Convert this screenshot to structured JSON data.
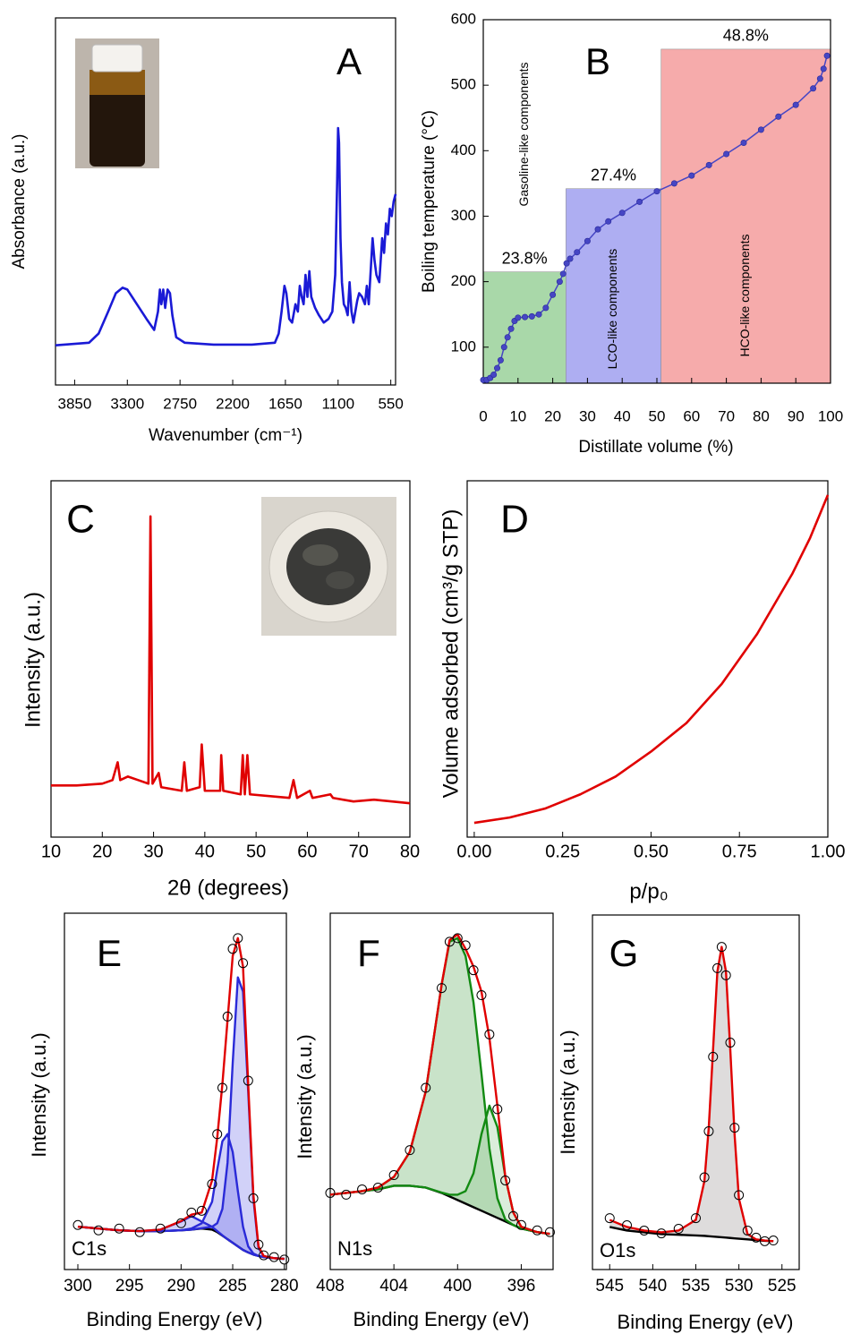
{
  "chart_data": [
    {
      "type": "line",
      "label": "A",
      "x_label": "Wavenumber (cm⁻¹)",
      "y_label": "Absorbance (a.u.)",
      "xlim": [
        4050,
        500
      ],
      "ylim": [
        0,
        100
      ],
      "xticks": [
        3850,
        3300,
        2750,
        2200,
        1650,
        1100,
        550
      ],
      "x": [
        4050,
        3700,
        3600,
        3500,
        3420,
        3350,
        3300,
        3200,
        3100,
        3020,
        2980,
        2960,
        2945,
        2925,
        2905,
        2880,
        2855,
        2830,
        2790,
        2700,
        2400,
        2000,
        1760,
        1720,
        1690,
        1660,
        1640,
        1610,
        1580,
        1545,
        1520,
        1500,
        1480,
        1460,
        1440,
        1420,
        1400,
        1380,
        1340,
        1300,
        1250,
        1200,
        1160,
        1130,
        1110,
        1100,
        1090,
        1075,
        1060,
        1040,
        1020,
        1000,
        980,
        960,
        940,
        920,
        900,
        880,
        850,
        820,
        800,
        780,
        760,
        740,
        720,
        700,
        670,
        640,
        620,
        600,
        580,
        560,
        540,
        520,
        500
      ],
      "series": [
        {
          "color": "#1a1ad6",
          "values": [
            10.8,
            11.5,
            14,
            20,
            25,
            26.5,
            26,
            22,
            18,
            15,
            20,
            26,
            22,
            26,
            21,
            26,
            25,
            19,
            13,
            11.5,
            11,
            11,
            11.5,
            14,
            20,
            27,
            25,
            18,
            17,
            22,
            20,
            27,
            24,
            22,
            30,
            24,
            31,
            24,
            21,
            19,
            17,
            18,
            20,
            30,
            55,
            70,
            66,
            40,
            28,
            22,
            21,
            19,
            28,
            20,
            17,
            20,
            23,
            25,
            24,
            22,
            27,
            22,
            31,
            40,
            34,
            30,
            28,
            40,
            36,
            44,
            41,
            48,
            46,
            50,
            52
          ]
        }
      ]
    },
    {
      "type": "scatter",
      "label": "B",
      "x_label": "Distillate volume (%)",
      "y_label": "Boiling temperature (°C)",
      "xlim": [
        0,
        100
      ],
      "ylim": [
        45,
        600
      ],
      "xticks": [
        0,
        10,
        20,
        30,
        40,
        50,
        60,
        70,
        80,
        90,
        100
      ],
      "yticks": [
        100,
        200,
        300,
        400,
        500,
        600
      ],
      "regions": {
        "names": [
          "Gasoline-like components",
          "LCO-like components",
          "HCO-like components"
        ],
        "values": [
          23.8,
          27.4,
          48.8
        ],
        "value_labels": [
          "23.8%",
          "27.4%",
          "48.8%"
        ],
        "tops": [
          215,
          342,
          555
        ],
        "colors": [
          "#a9d8a9",
          "#aeaef2",
          "#f6abab"
        ]
      },
      "x": [
        0,
        1,
        2,
        3,
        4,
        5,
        6,
        7,
        8,
        9,
        10,
        12,
        14,
        16,
        18,
        20,
        22,
        23,
        24,
        25,
        27,
        30,
        33,
        36,
        40,
        45,
        50,
        55,
        60,
        65,
        70,
        75,
        80,
        85,
        90,
        95,
        97,
        98,
        99
      ],
      "series": [
        {
          "color": "#4646c4",
          "values": [
            50,
            50,
            53,
            58,
            68,
            80,
            100,
            115,
            128,
            140,
            145,
            146,
            147,
            150,
            160,
            180,
            200,
            212,
            228,
            235,
            245,
            262,
            280,
            292,
            305,
            322,
            338,
            350,
            362,
            378,
            395,
            412,
            432,
            452,
            470,
            495,
            510,
            525,
            545
          ]
        }
      ]
    },
    {
      "type": "line",
      "label": "C",
      "x_label": "2θ (degrees)",
      "y_label": "Intensity (a.u.)",
      "xlim": [
        10,
        80
      ],
      "ylim": [
        0,
        100
      ],
      "xticks": [
        10,
        20,
        30,
        40,
        50,
        60,
        70,
        80
      ],
      "x": [
        10,
        15,
        20,
        22,
        23,
        23.5,
        25,
        27,
        29,
        29.4,
        29.8,
        31,
        31.5,
        35.5,
        36,
        36.5,
        39,
        39.4,
        40,
        43,
        43.2,
        43.6,
        47,
        47.4,
        47.8,
        48.3,
        48.8,
        56.5,
        57.3,
        58,
        60.5,
        61,
        64.5,
        65,
        69,
        73,
        80
      ],
      "series": [
        {
          "color": "#e00000",
          "values": [
            14.5,
            14.5,
            15,
            16,
            21,
            16,
            17,
            16,
            15,
            90,
            15,
            18,
            14,
            13,
            21,
            13,
            14,
            26,
            13,
            13,
            23,
            13,
            12,
            23,
            12,
            23,
            12,
            11,
            16,
            11,
            13,
            11,
            12,
            11,
            10,
            10.5,
            9.5
          ]
        }
      ]
    },
    {
      "type": "line",
      "label": "D",
      "x_label": "p/p₀",
      "y_label": "Volume adsorbed (cm³/g STP)",
      "xlim": [
        -0.02,
        1.0
      ],
      "ylim": [
        0,
        100
      ],
      "xticks": [
        {
          "value": 0,
          "label": "0.00"
        },
        {
          "value": 0.25,
          "label": "0.25"
        },
        {
          "value": 0.5,
          "label": "0.50"
        },
        {
          "value": 0.75,
          "label": "0.75"
        },
        {
          "value": 1,
          "label": "1.00"
        }
      ],
      "x": [
        0,
        0.1,
        0.2,
        0.3,
        0.4,
        0.5,
        0.6,
        0.7,
        0.8,
        0.9,
        0.95,
        1.0
      ],
      "series": [
        {
          "color": "#e00000",
          "values": [
            4,
            5.5,
            8,
            12,
            17,
            24,
            32,
            43,
            57,
            74,
            84,
            96
          ]
        }
      ]
    },
    {
      "type": "spectrum",
      "label": "E",
      "annotation": "C1s",
      "x_label": "Binding Energy (eV)",
      "y_label": "Intensity (a.u.)",
      "xlim": [
        301.3,
        279.8
      ],
      "ylim": [
        0,
        100
      ],
      "xticks": [
        300,
        295,
        290,
        285,
        280
      ],
      "x": [
        300,
        298,
        296,
        294,
        292,
        290,
        289,
        288,
        287,
        286.5,
        286,
        285.5,
        285,
        284.5,
        284,
        283.5,
        283,
        282.5,
        282,
        281,
        280
      ],
      "series": [
        {
          "color": "#000000",
          "style": "line",
          "values": [
            12,
            11.5,
            11,
            10.8,
            10.8,
            11,
            11.2,
            11.5,
            11.2,
            10.5,
            9.5,
            8.5,
            7.5,
            6.5,
            5.5,
            4.8,
            4.2,
            3.8,
            3.5,
            3.2,
            3
          ]
        },
        {
          "color": "#2a2ad8",
          "style": "line",
          "fill": "#5a5ae6",
          "values": [
            12,
            11.5,
            11,
            10.8,
            11.2,
            13.5,
            15,
            13.5,
            12,
            10.8,
            9.6,
            8.5,
            7.5,
            6.5,
            5.5,
            4.8,
            4.2,
            3.8,
            3.5,
            3.2,
            3
          ]
        },
        {
          "color": "#2a2ad8",
          "style": "line",
          "fill": "#5a5ae6",
          "values": [
            12,
            11.5,
            11,
            10.8,
            10.8,
            11,
            11.5,
            13,
            19,
            28,
            36,
            38,
            33,
            22,
            12,
            6.5,
            4.5,
            3.8,
            3.5,
            3.2,
            3
          ]
        },
        {
          "color": "#2a2ad8",
          "style": "line",
          "fill": "#5a5ae6",
          "values": [
            12,
            11.5,
            11,
            10.8,
            10.8,
            11,
            11.2,
            11.6,
            12,
            13,
            17,
            30,
            58,
            82,
            78,
            50,
            20,
            6,
            3.8,
            3.2,
            3
          ]
        },
        {
          "color": "#e00000",
          "style": "line",
          "values": [
            12,
            11.5,
            11,
            10.8,
            11.2,
            13.6,
            15.4,
            16,
            25,
            37,
            52,
            70,
            88,
            93,
            85,
            52,
            21,
            6.5,
            3.8,
            3.2,
            3
          ]
        },
        {
          "color": "#000000",
          "style": "points",
          "values": [
            12.5,
            11,
            11.5,
            10.5,
            11.5,
            13,
            16,
            16.5,
            24,
            38,
            51,
            71,
            90,
            93,
            86,
            53,
            20,
            7,
            4,
            3.5,
            2.8
          ]
        }
      ]
    },
    {
      "type": "spectrum",
      "label": "F",
      "annotation": "N1s",
      "x_label": "Binding Energy (eV)",
      "y_label": "Intensity (a.u.)",
      "xlim": [
        408,
        394
      ],
      "ylim": [
        0,
        100
      ],
      "xticks": [
        408,
        404,
        400,
        396
      ],
      "x": [
        408,
        407,
        406,
        405,
        404,
        403,
        402,
        401,
        400.5,
        400,
        399.5,
        399,
        398.5,
        398,
        397.5,
        397,
        396.5,
        396,
        395,
        394.2
      ],
      "series": [
        {
          "color": "#000000",
          "style": "line",
          "values": [
            21,
            21.5,
            22,
            22.5,
            23.5,
            23.5,
            23,
            21.5,
            20.5,
            19.5,
            18.5,
            17.5,
            16.5,
            15.5,
            14.5,
            13.5,
            12.5,
            11.5,
            10.5,
            10
          ]
        },
        {
          "color": "#128a12",
          "style": "line",
          "fill": "#3c9a3c",
          "values": [
            21,
            21.5,
            22,
            23,
            26,
            33,
            50,
            80,
            92,
            93,
            88,
            75,
            55,
            34,
            20,
            14,
            12.5,
            11.5,
            10.5,
            10
          ]
        },
        {
          "color": "#128a12",
          "style": "line",
          "fill": "#7cc07c",
          "values": [
            21,
            21.5,
            22,
            22.5,
            23.5,
            23.5,
            23,
            21.6,
            21,
            21,
            22,
            27,
            38,
            46,
            40,
            26,
            16,
            12,
            10.5,
            10
          ]
        },
        {
          "color": "#e00000",
          "style": "line",
          "values": [
            21,
            21.5,
            22,
            23,
            26,
            33,
            50,
            80,
            92.5,
            94,
            90,
            85,
            78,
            65,
            46,
            26,
            16,
            12,
            10.5,
            10
          ]
        },
        {
          "color": "#000000",
          "style": "points",
          "values": [
            21.5,
            21,
            22.5,
            23,
            26.5,
            33.5,
            51,
            79,
            92,
            93,
            91,
            84,
            77,
            66,
            45,
            25,
            15,
            12.5,
            11,
            10.5
          ]
        }
      ]
    },
    {
      "type": "spectrum",
      "label": "G",
      "annotation": "O1s",
      "x_label": "Binding Energy (eV)",
      "y_label": "Intensity (a.u.)",
      "xlim": [
        547,
        523
      ],
      "ylim": [
        0,
        100
      ],
      "xticks": [
        545,
        540,
        535,
        530,
        525
      ],
      "x": [
        545,
        543,
        541,
        539,
        537,
        535,
        534,
        533.5,
        533,
        532.5,
        532,
        531.5,
        531,
        530.5,
        530,
        529,
        528,
        527,
        526
      ],
      "series": [
        {
          "color": "#000000",
          "style": "line",
          "values": [
            12,
            11,
            10.5,
            10,
            9.8,
            9.6,
            9.5,
            9.4,
            9.3,
            9.2,
            9.1,
            9,
            8.9,
            8.8,
            8.7,
            8.5,
            8.3,
            8.1,
            8
          ]
        },
        {
          "color": "#e00000",
          "style": "line",
          "fill": "#8a8080",
          "values": [
            14,
            12,
            11,
            10.5,
            11,
            14,
            25,
            40,
            62,
            84,
            91,
            84,
            62,
            38,
            20,
            10,
            8.5,
            8.2,
            8
          ]
        },
        {
          "color": "#000000",
          "style": "points",
          "values": [
            14.5,
            12.5,
            11,
            10.2,
            11.5,
            14.5,
            26,
            39,
            60,
            85,
            91,
            83,
            64,
            40,
            21,
            11,
            9,
            8,
            8.2
          ]
        }
      ]
    }
  ]
}
